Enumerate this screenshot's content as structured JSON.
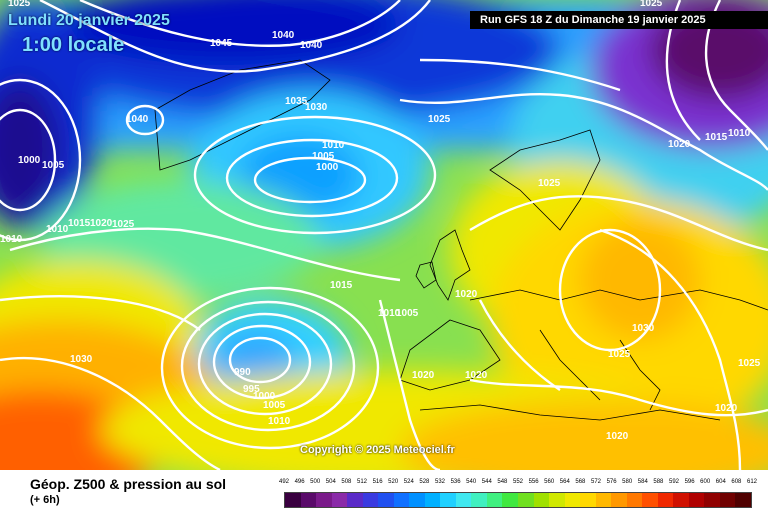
{
  "header": {
    "date_text": "Lundi 20 janvier 2025",
    "hour_text": "1:00 locale",
    "run_text": "Run GFS 18 Z du Dimanche 19 janvier 2025"
  },
  "map": {
    "copyright": "Copyright © 2025 Meteociel.fr",
    "isobar_labels": [
      {
        "text": "1025"
      },
      {
        "text": "1045"
      },
      {
        "text": "1040"
      },
      {
        "text": "1040"
      },
      {
        "text": "1035"
      },
      {
        "text": "1030"
      },
      {
        "text": "1025"
      },
      {
        "text": "1040"
      },
      {
        "text": "1010"
      },
      {
        "text": "1005"
      },
      {
        "text": "1000"
      },
      {
        "text": "1000"
      },
      {
        "text": "1005"
      },
      {
        "text": "1010"
      },
      {
        "text": "1015"
      },
      {
        "text": "1020"
      },
      {
        "text": "1025"
      },
      {
        "text": "1010"
      },
      {
        "text": "1025"
      },
      {
        "text": "1020"
      },
      {
        "text": "1015"
      },
      {
        "text": "1010"
      },
      {
        "text": "1015"
      },
      {
        "text": "1020"
      },
      {
        "text": "1010"
      },
      {
        "text": "1005"
      },
      {
        "text": "1030"
      },
      {
        "text": "1030"
      },
      {
        "text": "1025"
      },
      {
        "text": "1025"
      },
      {
        "text": "990"
      },
      {
        "text": "995"
      },
      {
        "text": "1000"
      },
      {
        "text": "1005"
      },
      {
        "text": "1010"
      },
      {
        "text": "1020"
      },
      {
        "text": "1020"
      },
      {
        "text": "1020"
      },
      {
        "text": "1020"
      },
      {
        "text": "1025"
      }
    ]
  },
  "footer": {
    "title": "Géop. Z500 & pression au sol",
    "subtitle": "(+ 6h)"
  },
  "legend": {
    "labels": [
      "492",
      "496",
      "500",
      "504",
      "508",
      "512",
      "516",
      "520",
      "524",
      "528",
      "532",
      "536",
      "540",
      "544",
      "548",
      "552",
      "556",
      "560",
      "564",
      "568",
      "572",
      "576",
      "580",
      "584",
      "588",
      "592",
      "596",
      "600",
      "604",
      "608",
      "612"
    ],
    "colors": [
      "#3a0040",
      "#5a0a6a",
      "#7a1a8a",
      "#8a2aa8",
      "#5a2ac8",
      "#3a3ae0",
      "#2050f0",
      "#1070ff",
      "#0090ff",
      "#00b0ff",
      "#20d0ff",
      "#40e8f0",
      "#40f0c0",
      "#40f080",
      "#40e840",
      "#70e020",
      "#a0e000",
      "#d0e800",
      "#f0e800",
      "#ffd800",
      "#ffb800",
      "#ff9800",
      "#ff7800",
      "#ff5000",
      "#f02800",
      "#d01000",
      "#b00000",
      "#900000",
      "#700000",
      "#500000"
    ]
  }
}
